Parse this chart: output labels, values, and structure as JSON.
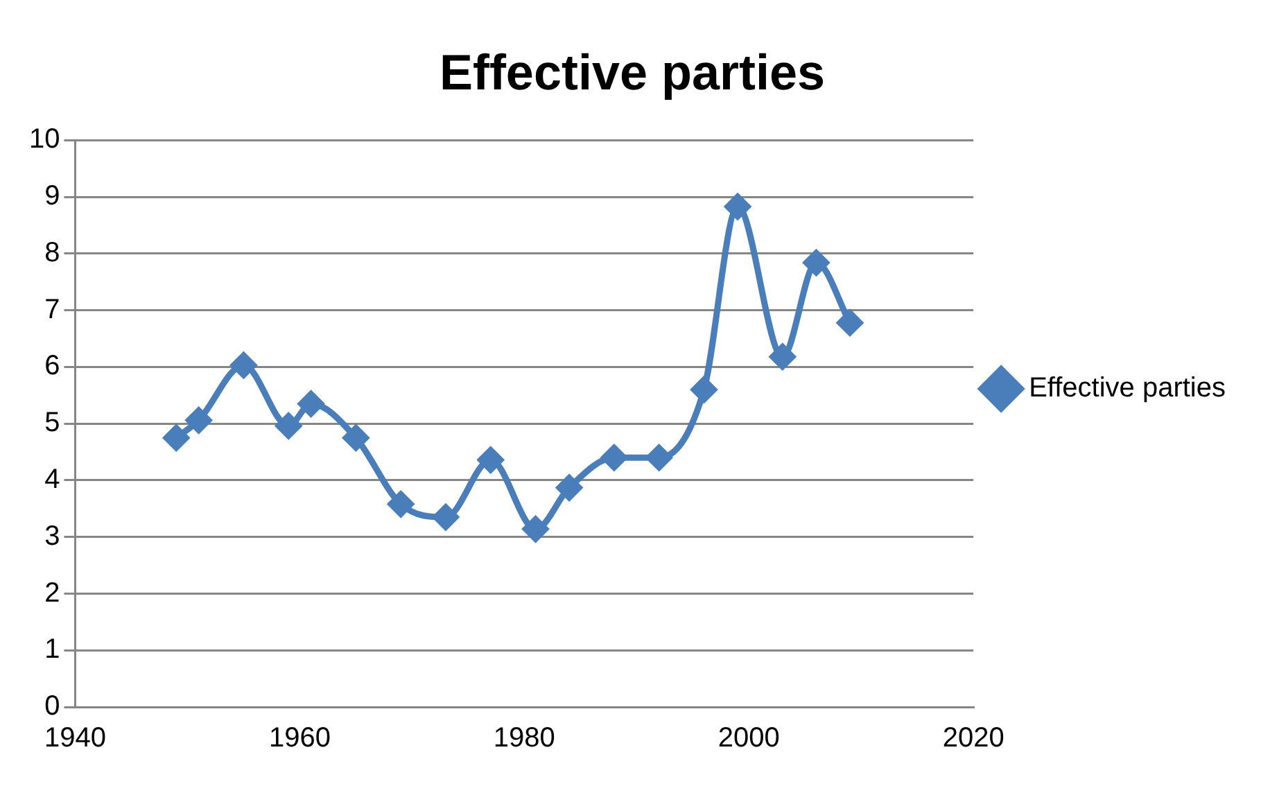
{
  "chart_data": {
    "type": "line",
    "title": "Effective parties",
    "x": [
      1949,
      1951,
      1955,
      1959,
      1961,
      1965,
      1969,
      1973,
      1977,
      1981,
      1984,
      1988,
      1992,
      1996,
      1999,
      2003,
      2006,
      2009
    ],
    "series": [
      {
        "name": "Effective parties",
        "color": "#4a7ebb",
        "values": [
          4.75,
          5.06,
          6.03,
          4.96,
          5.35,
          4.75,
          3.58,
          3.35,
          4.36,
          3.14,
          3.87,
          4.4,
          4.4,
          5.6,
          8.83,
          6.18,
          7.84,
          6.78
        ]
      }
    ],
    "xlim": [
      1940,
      2020
    ],
    "xticks": [
      1940,
      1960,
      1980,
      2000,
      2020
    ],
    "ylim": [
      0,
      10
    ],
    "yticks": [
      0,
      1,
      2,
      3,
      4,
      5,
      6,
      7,
      8,
      9,
      10
    ],
    "grid": "y",
    "legend": "right",
    "marker": "diamond",
    "line_style": "solid"
  }
}
